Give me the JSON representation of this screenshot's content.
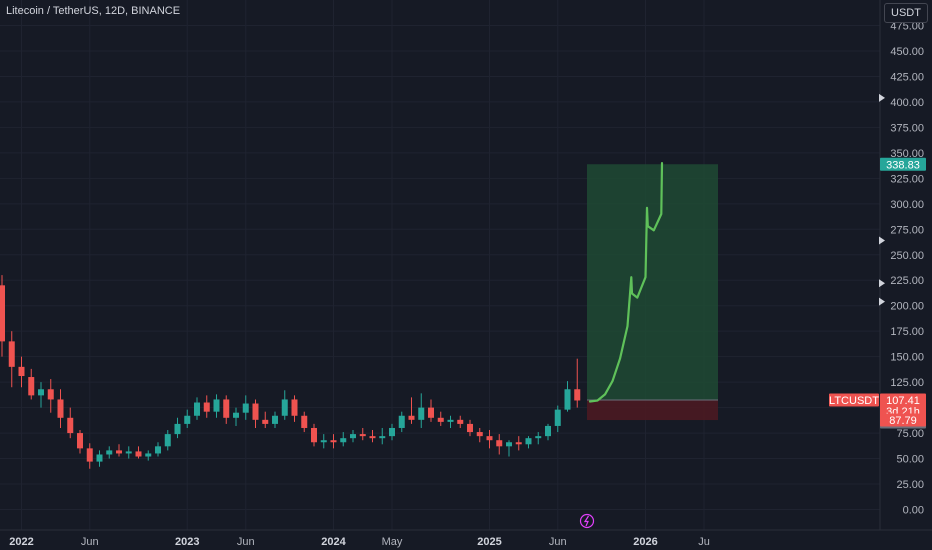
{
  "header": {
    "title": "Litecoin / TetherUS, 12D, BINANCE",
    "currency_button": "USDT"
  },
  "colors": {
    "background": "#161a25",
    "up": "#26a69a",
    "down": "#ef5350",
    "target_zone": "#1f4a34",
    "stop_zone": "#4a1a22",
    "projection": "#5fc15a",
    "grid": "#1f2330"
  },
  "chart_data": {
    "type": "candlestick",
    "title": "Litecoin / TetherUS, 12D, BINANCE",
    "ylim": [
      -8,
      485
    ],
    "y_ticks": [
      "475.00",
      "450.00",
      "425.00",
      "400.00",
      "375.00",
      "350.00",
      "325.00",
      "300.00",
      "275.00",
      "250.00",
      "225.00",
      "200.00",
      "175.00",
      "150.00",
      "125.00",
      "100.00",
      "75.00",
      "50.00",
      "25.00",
      "0.00"
    ],
    "y_tick_values": [
      475,
      450,
      425,
      400,
      375,
      350,
      325,
      300,
      275,
      250,
      225,
      200,
      175,
      150,
      125,
      100,
      75,
      50,
      25,
      0
    ],
    "x_ticks": [
      "2022",
      "Jun",
      "2023",
      "Jun",
      "2024",
      "May",
      "2025",
      "Jun",
      "2026",
      "Ju"
    ],
    "x_tick_bars": [
      2,
      9,
      19,
      25,
      34,
      40,
      50,
      57,
      66,
      72
    ],
    "bar_count": 74,
    "candles": [
      [
        0,
        220,
        230,
        150,
        165
      ],
      [
        1,
        165,
        175,
        120,
        140
      ],
      [
        2,
        140,
        150,
        120,
        131
      ],
      [
        3,
        130,
        138,
        108,
        112
      ],
      [
        4,
        112,
        125,
        100,
        118
      ],
      [
        5,
        118,
        128,
        95,
        108
      ],
      [
        6,
        108,
        118,
        80,
        90
      ],
      [
        7,
        90,
        100,
        70,
        75
      ],
      [
        8,
        75,
        78,
        55,
        60
      ],
      [
        9,
        60,
        65,
        40,
        47
      ],
      [
        10,
        47,
        58,
        42,
        54
      ],
      [
        11,
        54,
        62,
        50,
        58
      ],
      [
        12,
        58,
        64,
        52,
        55
      ],
      [
        13,
        55,
        62,
        50,
        57
      ],
      [
        14,
        57,
        62,
        50,
        52
      ],
      [
        15,
        52,
        58,
        48,
        55
      ],
      [
        16,
        55,
        66,
        52,
        62
      ],
      [
        17,
        62,
        78,
        58,
        74
      ],
      [
        18,
        74,
        90,
        70,
        84
      ],
      [
        19,
        84,
        98,
        80,
        92
      ],
      [
        20,
        92,
        110,
        88,
        105
      ],
      [
        21,
        105,
        112,
        90,
        96
      ],
      [
        22,
        96,
        113,
        90,
        108
      ],
      [
        23,
        108,
        112,
        84,
        90
      ],
      [
        24,
        90,
        100,
        82,
        95
      ],
      [
        25,
        95,
        112,
        88,
        104
      ],
      [
        26,
        104,
        108,
        80,
        88
      ],
      [
        27,
        88,
        96,
        80,
        84
      ],
      [
        28,
        84,
        96,
        80,
        92
      ],
      [
        29,
        92,
        117,
        88,
        108
      ],
      [
        30,
        108,
        112,
        86,
        92
      ],
      [
        31,
        92,
        96,
        76,
        80
      ],
      [
        32,
        80,
        84,
        62,
        66
      ],
      [
        33,
        66,
        74,
        60,
        68
      ],
      [
        34,
        68,
        74,
        60,
        66
      ],
      [
        35,
        66,
        76,
        62,
        70
      ],
      [
        36,
        70,
        78,
        66,
        74
      ],
      [
        37,
        74,
        80,
        68,
        72
      ],
      [
        38,
        72,
        78,
        66,
        70
      ],
      [
        39,
        70,
        80,
        64,
        72
      ],
      [
        40,
        72,
        84,
        68,
        80
      ],
      [
        41,
        80,
        96,
        76,
        92
      ],
      [
        42,
        92,
        110,
        84,
        88
      ],
      [
        43,
        88,
        114,
        80,
        100
      ],
      [
        44,
        100,
        108,
        86,
        90
      ],
      [
        45,
        90,
        96,
        82,
        86
      ],
      [
        46,
        86,
        92,
        80,
        88
      ],
      [
        47,
        88,
        92,
        80,
        84
      ],
      [
        48,
        84,
        88,
        72,
        76
      ],
      [
        49,
        76,
        80,
        66,
        72
      ],
      [
        50,
        72,
        78,
        60,
        68
      ],
      [
        51,
        68,
        74,
        54,
        62
      ],
      [
        52,
        62,
        68,
        52,
        66
      ],
      [
        53,
        66,
        72,
        58,
        64
      ],
      [
        54,
        64,
        72,
        60,
        70
      ],
      [
        55,
        70,
        76,
        64,
        72
      ],
      [
        56,
        72,
        84,
        68,
        82
      ],
      [
        57,
        82,
        102,
        76,
        98
      ],
      [
        58,
        98,
        126,
        96,
        118
      ],
      [
        59,
        118,
        148,
        100,
        107
      ]
    ],
    "trade_zone": {
      "target_price": 338.83,
      "entry_price": 107.41,
      "stop_price": 87.79
    },
    "projection_path": [
      [
        0,
        106
      ],
      [
        1,
        107
      ],
      [
        2,
        113
      ],
      [
        3,
        126
      ],
      [
        4,
        148
      ],
      [
        5,
        180
      ],
      [
        5.5,
        228
      ],
      [
        5.6,
        212
      ],
      [
        6.3,
        208
      ],
      [
        7.4,
        228
      ],
      [
        7.6,
        296
      ],
      [
        7.7,
        278
      ],
      [
        8.5,
        274
      ],
      [
        9.5,
        290
      ],
      [
        9.6,
        340
      ]
    ],
    "price_labels": {
      "target": "338.83",
      "symbol": "LTCUSDT",
      "current": "107.41",
      "countdown": "3d 21h",
      "level": "106.80",
      "stop": "87.79"
    }
  }
}
